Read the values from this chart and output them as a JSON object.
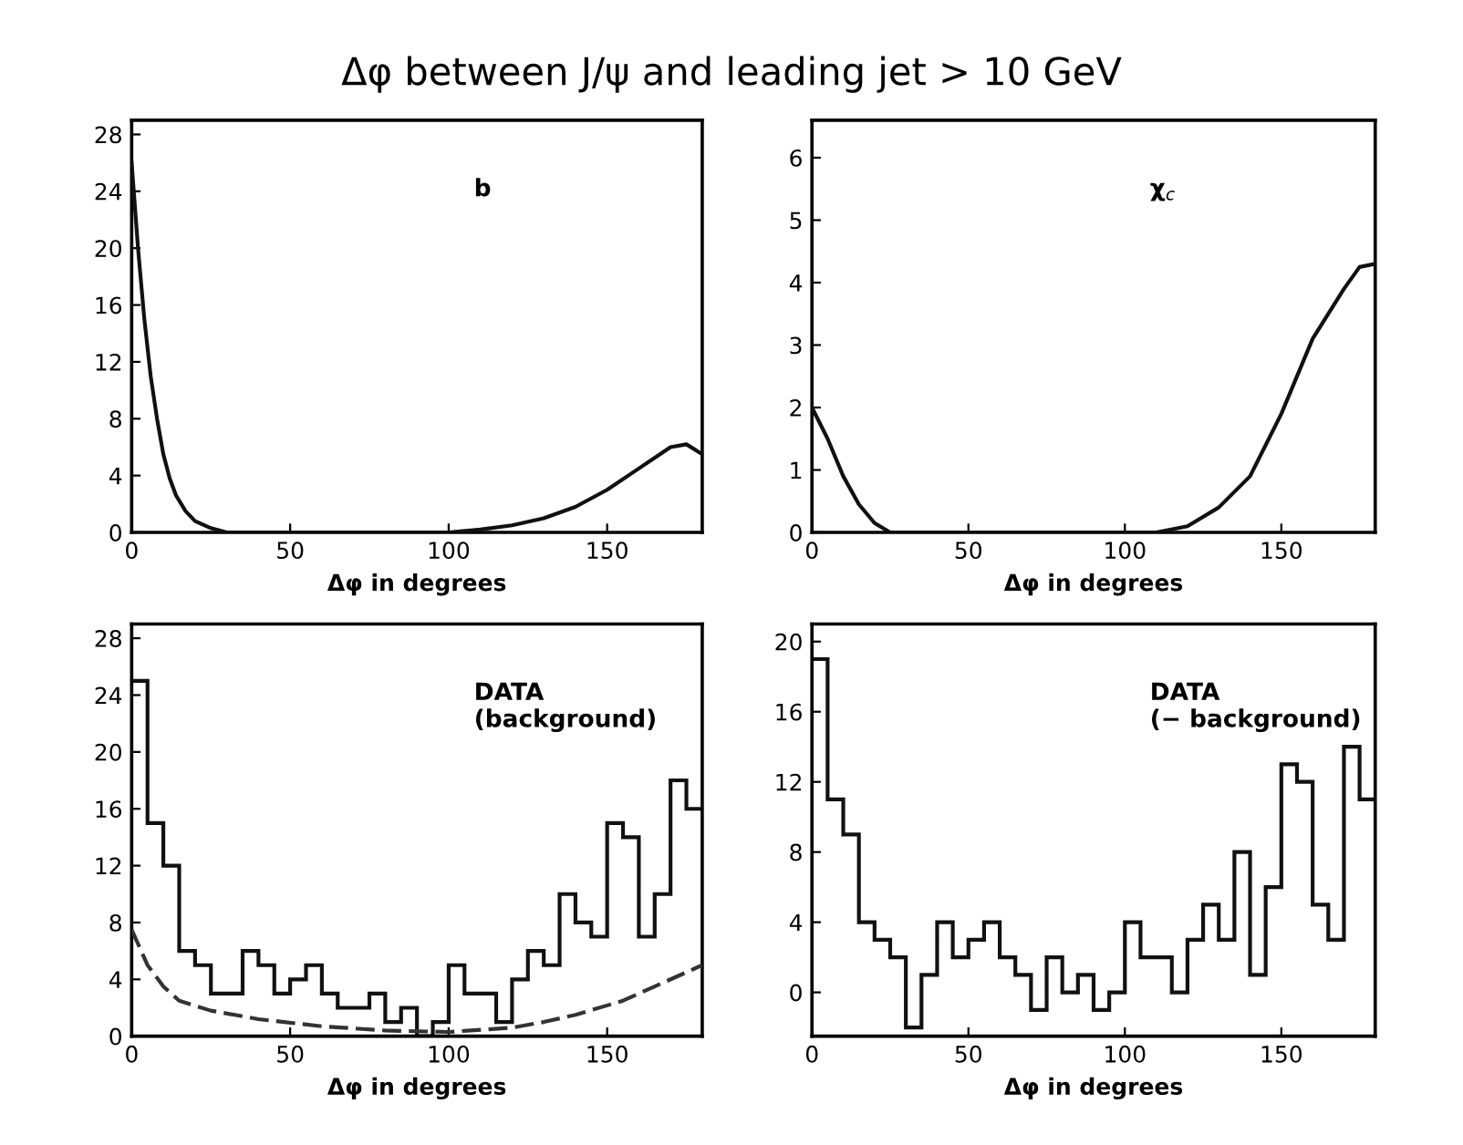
{
  "chart_data": [
    {
      "type": "line",
      "title": "Δφ between J/ψ and leading jet > 10 GeV",
      "xlabel": "Δφ in degrees",
      "annotations": [
        "b"
      ],
      "xlim": [
        0,
        180
      ],
      "xticks": [
        0,
        50,
        100,
        150
      ],
      "ylim": [
        0,
        29
      ],
      "yticks": [
        0,
        4,
        8,
        12,
        16,
        20,
        24,
        28
      ],
      "color": "#111111",
      "x": [
        0,
        2,
        4,
        6,
        8,
        10,
        12,
        14,
        17,
        20,
        25,
        30,
        100,
        110,
        120,
        130,
        140,
        150,
        160,
        170,
        175,
        180
      ],
      "values": [
        26,
        20,
        15,
        11,
        8,
        5.5,
        3.8,
        2.6,
        1.5,
        0.8,
        0.3,
        0,
        0,
        0.2,
        0.5,
        1,
        1.8,
        3,
        4.5,
        6,
        6.2,
        5.5
      ]
    },
    {
      "type": "line",
      "xlabel": "Δφ in degrees",
      "annotations": [
        "χ$_{c}$"
      ],
      "xlim": [
        0,
        180
      ],
      "xticks": [
        0,
        50,
        100,
        150
      ],
      "ylim": [
        0,
        6.6
      ],
      "yticks": [
        0,
        1,
        2,
        3,
        4,
        5,
        6
      ],
      "color": "#111111",
      "x": [
        0,
        5,
        10,
        15,
        20,
        25,
        110,
        120,
        130,
        140,
        150,
        160,
        170,
        175,
        180
      ],
      "values": [
        2,
        1.5,
        0.9,
        0.45,
        0.15,
        0,
        0,
        0.1,
        0.4,
        0.9,
        1.9,
        3.1,
        3.9,
        4.25,
        4.3
      ]
    },
    {
      "type": "histogram",
      "xlabel": "Δφ in degrees",
      "annotations": [
        "DATA\n(background)"
      ],
      "xlim": [
        0,
        180
      ],
      "xticks": [
        0,
        50,
        100,
        150
      ],
      "ylim": [
        0,
        29
      ],
      "yticks": [
        0,
        4,
        8,
        12,
        16,
        20,
        24,
        28
      ],
      "bins": [
        0,
        5,
        10,
        15,
        20,
        25,
        30,
        35,
        40,
        45,
        50,
        55,
        60,
        65,
        70,
        75,
        80,
        85,
        90,
        95,
        100,
        105,
        110,
        115,
        120,
        125,
        130,
        135,
        140,
        145,
        150,
        155,
        160,
        165,
        170,
        175,
        180
      ],
      "series": [
        {
          "type": "histogram",
          "color": "#111111",
          "values": [
            25,
            15,
            12,
            6,
            5,
            3,
            3,
            6,
            5,
            3,
            4,
            5,
            3,
            2,
            2,
            3,
            1,
            2,
            0,
            1,
            5,
            3,
            3,
            1,
            4,
            6,
            5,
            10,
            8,
            7,
            15,
            14,
            7,
            10,
            18,
            16
          ]
        },
        {
          "type": "line",
          "line_style": "dashed",
          "color": "#333333",
          "x": [
            0,
            5,
            10,
            15,
            25,
            40,
            60,
            80,
            100,
            120,
            130,
            140,
            155,
            165,
            175,
            180
          ],
          "values": [
            7.5,
            5,
            3.5,
            2.5,
            1.8,
            1.2,
            0.7,
            0.4,
            0.3,
            0.6,
            1,
            1.5,
            2.5,
            3.5,
            4.5,
            5
          ]
        }
      ]
    },
    {
      "type": "histogram",
      "xlabel": "Δφ in degrees",
      "annotations": [
        "DATA\n(− background)"
      ],
      "xlim": [
        0,
        180
      ],
      "xticks": [
        0,
        50,
        100,
        150
      ],
      "ylim": [
        -2.5,
        21
      ],
      "yticks": [
        0,
        4,
        8,
        12,
        16,
        20
      ],
      "bins": [
        0,
        5,
        10,
        15,
        20,
        25,
        30,
        35,
        40,
        45,
        50,
        55,
        60,
        65,
        70,
        75,
        80,
        85,
        90,
        95,
        100,
        105,
        110,
        115,
        120,
        125,
        130,
        135,
        140,
        145,
        150,
        155,
        160,
        165,
        170,
        175,
        180
      ],
      "series": [
        {
          "type": "histogram",
          "color": "#111111",
          "values": [
            19,
            11,
            9,
            4,
            3,
            2,
            -2,
            1,
            4,
            2,
            3,
            4,
            2,
            1,
            -1,
            2,
            0,
            1,
            -1,
            0,
            4,
            2,
            2,
            0,
            3,
            5,
            3,
            8,
            1,
            6,
            13,
            12,
            5,
            3,
            14,
            11
          ]
        }
      ]
    }
  ]
}
